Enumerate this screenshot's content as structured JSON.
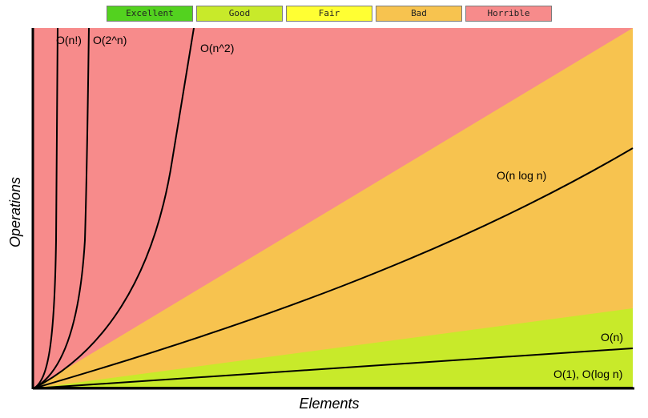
{
  "legend": [
    {
      "label": "Excellent",
      "color": "#53d21f"
    },
    {
      "label": "Good",
      "color": "#c8ea2a"
    },
    {
      "label": "Fair",
      "color": "#ffff33"
    },
    {
      "label": "Bad",
      "color": "#f7c34f"
    },
    {
      "label": "Horrible",
      "color": "#f78b8b"
    }
  ],
  "axes": {
    "x_title": "Elements",
    "y_title": "Operations"
  },
  "curves": [
    {
      "label": "O(n!)",
      "kind": "factorial"
    },
    {
      "label": "O(2^n)",
      "kind": "exponential"
    },
    {
      "label": "O(n^2)",
      "kind": "quadratic"
    },
    {
      "label": "O(n log n)",
      "kind": "nlogn"
    },
    {
      "label": "O(n)",
      "kind": "linear"
    },
    {
      "label": "O(1), O(log n)",
      "kind": "constant"
    }
  ],
  "regions": {
    "horrible_color": "#f78b8b",
    "bad_color": "#f7c34f",
    "good_color": "#c8ea2a"
  }
}
